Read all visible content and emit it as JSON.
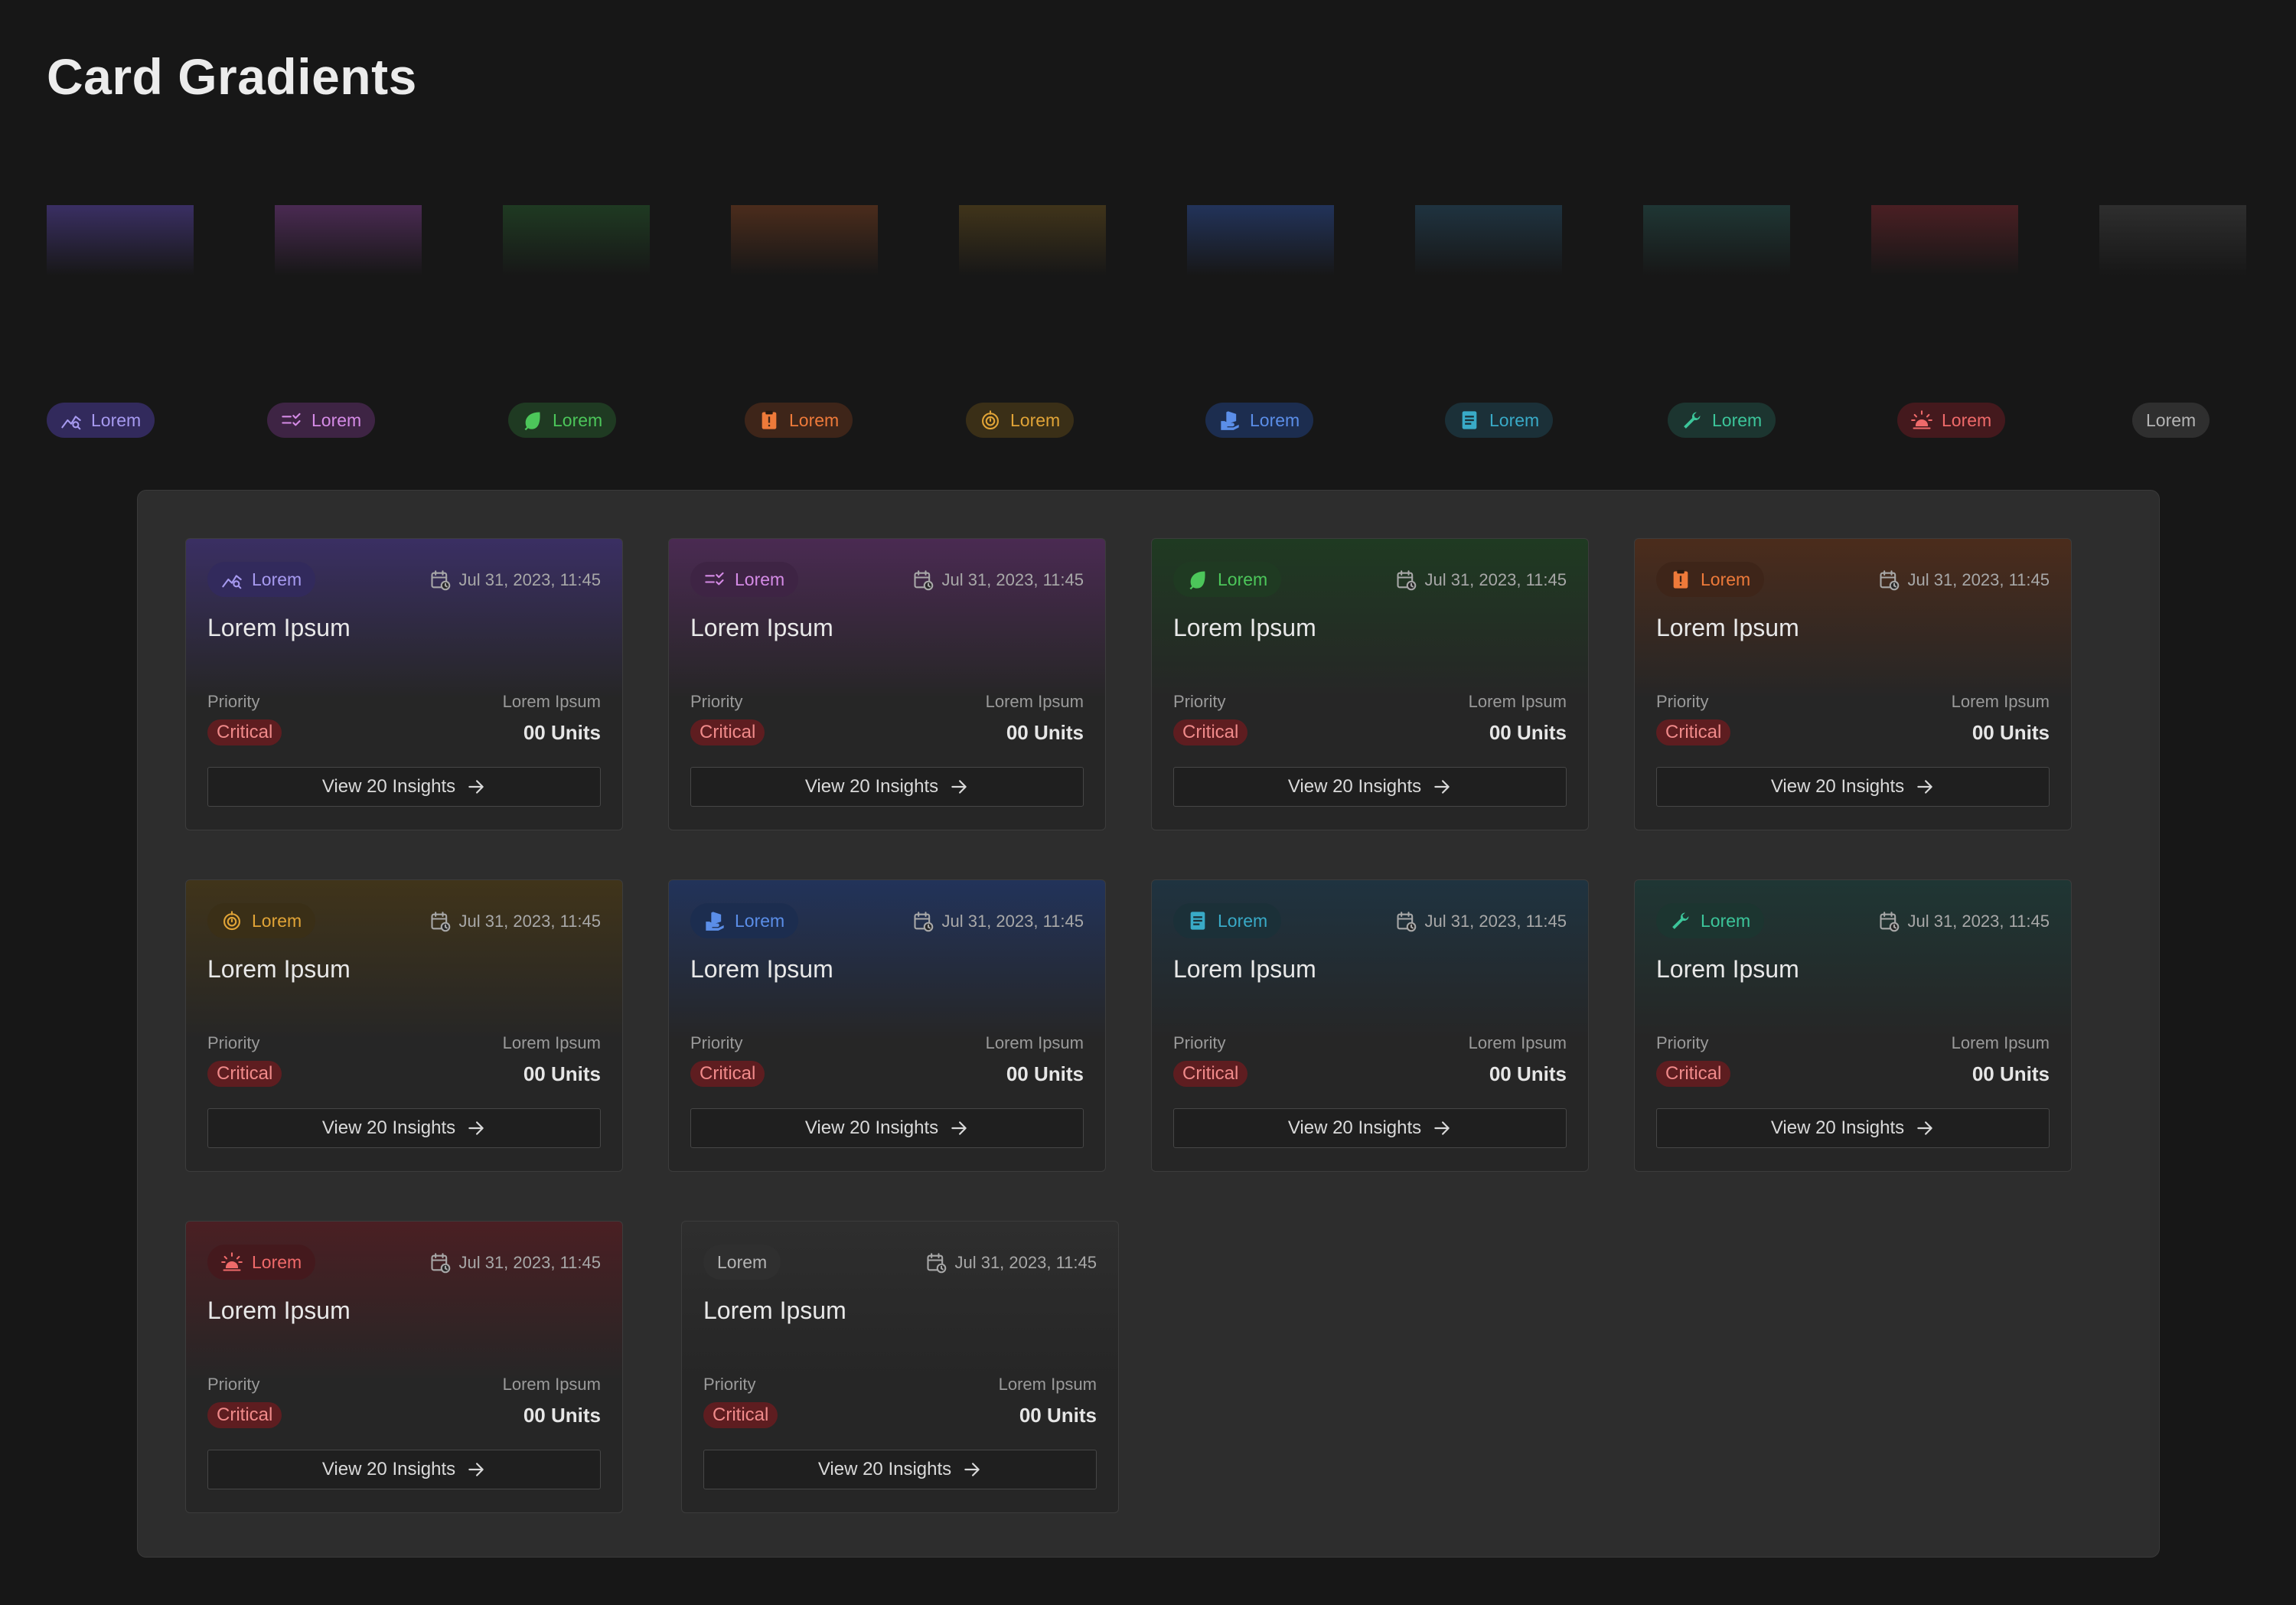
{
  "page": {
    "title": "Card Gradients"
  },
  "swatches": [
    {
      "id": "purple",
      "color": "#3a2f63"
    },
    {
      "id": "magenta",
      "color": "#4a2a52"
    },
    {
      "id": "green",
      "color": "#1f3a22"
    },
    {
      "id": "orange",
      "color": "#4b2c1c"
    },
    {
      "id": "amber",
      "color": "#40341a"
    },
    {
      "id": "blue",
      "color": "#22335a"
    },
    {
      "id": "teal",
      "color": "#1f3340"
    },
    {
      "id": "mint",
      "color": "#1f3634"
    },
    {
      "id": "red",
      "color": "#4a1f23"
    },
    {
      "id": "gray",
      "color": "#2e2e2e"
    }
  ],
  "tags": [
    {
      "label": "Lorem",
      "icon": "trend-chart-icon",
      "bg": "#322a5c",
      "fg": "#a79af0"
    },
    {
      "label": "Lorem",
      "icon": "checklist-icon",
      "bg": "#3e2444",
      "fg": "#d58be6"
    },
    {
      "label": "Lorem",
      "icon": "leaf-icon",
      "bg": "#1f3a22",
      "fg": "#4cc65a"
    },
    {
      "label": "Lorem",
      "icon": "alert-clipboard-icon",
      "bg": "#3e2519",
      "fg": "#ee7a3a"
    },
    {
      "label": "Lorem",
      "icon": "timer-icon",
      "bg": "#3a2f17",
      "fg": "#e1a437"
    },
    {
      "label": "Lorem",
      "icon": "hand-box-icon",
      "bg": "#1c2d4f",
      "fg": "#5b8ee8"
    },
    {
      "label": "Lorem",
      "icon": "document-icon",
      "bg": "#1b3038",
      "fg": "#39aac7"
    },
    {
      "label": "Lorem",
      "icon": "wrench-icon",
      "bg": "#1c3530",
      "fg": "#3cc59a"
    },
    {
      "label": "Lorem",
      "icon": "siren-icon",
      "bg": "#44191d",
      "fg": "#ef6a6a"
    },
    {
      "label": "Lorem",
      "icon": "",
      "bg": "#2f2f2f",
      "fg": "#b5b5b5"
    }
  ],
  "cards": [
    {
      "tag": "Lorem",
      "icon": "trend-chart-icon",
      "theme": 0,
      "date": "Jul 31, 2023, 11:45",
      "title": "Lorem Ipsum",
      "priority_label": "Priority",
      "priority": "Critical",
      "units_label": "Lorem Ipsum",
      "units": "00 Units",
      "button": "View 20 Insights"
    },
    {
      "tag": "Lorem",
      "icon": "checklist-icon",
      "theme": 1,
      "date": "Jul 31, 2023, 11:45",
      "title": "Lorem Ipsum",
      "priority_label": "Priority",
      "priority": "Critical",
      "units_label": "Lorem Ipsum",
      "units": "00 Units",
      "button": "View 20 Insights"
    },
    {
      "tag": "Lorem",
      "icon": "leaf-icon",
      "theme": 2,
      "date": "Jul 31, 2023, 11:45",
      "title": "Lorem Ipsum",
      "priority_label": "Priority",
      "priority": "Critical",
      "units_label": "Lorem Ipsum",
      "units": "00 Units",
      "button": "View 20 Insights"
    },
    {
      "tag": "Lorem",
      "icon": "alert-clipboard-icon",
      "theme": 3,
      "date": "Jul 31, 2023, 11:45",
      "title": "Lorem Ipsum",
      "priority_label": "Priority",
      "priority": "Critical",
      "units_label": "Lorem Ipsum",
      "units": "00 Units",
      "button": "View 20 Insights"
    },
    {
      "tag": "Lorem",
      "icon": "timer-icon",
      "theme": 4,
      "date": "Jul 31, 2023, 11:45",
      "title": "Lorem Ipsum",
      "priority_label": "Priority",
      "priority": "Critical",
      "units_label": "Lorem Ipsum",
      "units": "00 Units",
      "button": "View 20 Insights"
    },
    {
      "tag": "Lorem",
      "icon": "hand-box-icon",
      "theme": 5,
      "date": "Jul 31, 2023, 11:45",
      "title": "Lorem Ipsum",
      "priority_label": "Priority",
      "priority": "Critical",
      "units_label": "Lorem Ipsum",
      "units": "00 Units",
      "button": "View 20 Insights"
    },
    {
      "tag": "Lorem",
      "icon": "document-icon",
      "theme": 6,
      "date": "Jul 31, 2023, 11:45",
      "title": "Lorem Ipsum",
      "priority_label": "Priority",
      "priority": "Critical",
      "units_label": "Lorem Ipsum",
      "units": "00 Units",
      "button": "View 20 Insights"
    },
    {
      "tag": "Lorem",
      "icon": "wrench-icon",
      "theme": 7,
      "date": "Jul 31, 2023, 11:45",
      "title": "Lorem Ipsum",
      "priority_label": "Priority",
      "priority": "Critical",
      "units_label": "Lorem Ipsum",
      "units": "00 Units",
      "button": "View 20 Insights"
    },
    {
      "tag": "Lorem",
      "icon": "siren-icon",
      "theme": 8,
      "date": "Jul 31, 2023, 11:45",
      "title": "Lorem Ipsum",
      "priority_label": "Priority",
      "priority": "Critical",
      "units_label": "Lorem Ipsum",
      "units": "00 Units",
      "button": "View 20 Insights"
    },
    {
      "tag": "Lorem",
      "icon": "",
      "theme": 9,
      "date": "Jul 31, 2023, 11:45",
      "title": "Lorem Ipsum",
      "priority_label": "Priority",
      "priority": "Critical",
      "units_label": "Lorem Ipsum",
      "units": "00 Units",
      "button": "View 20 Insights"
    }
  ]
}
